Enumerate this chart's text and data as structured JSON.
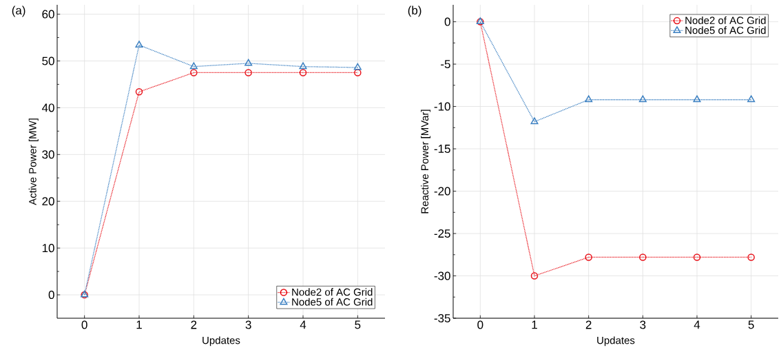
{
  "chart_data": [
    {
      "type": "line",
      "title": "(a)",
      "xlabel": "Updates",
      "ylabel": "Active Power [MW]",
      "x": [
        0,
        1,
        2,
        3,
        4,
        5
      ],
      "xlim": [
        -0.5,
        5.5
      ],
      "xticks": [
        0,
        1,
        2,
        3,
        4,
        5
      ],
      "ylim": [
        -5,
        62
      ],
      "yticks": [
        0,
        10,
        20,
        30,
        40,
        50,
        60
      ],
      "grid": true,
      "legend": "bottom right",
      "line_style": "dotted",
      "series": [
        {
          "name": "Node2 of AC Grid",
          "color": "#e8141c",
          "marker": "circle",
          "values": [
            0,
            43.4,
            47.5,
            47.5,
            47.5,
            47.5
          ]
        },
        {
          "name": "Node5 of AC Grid",
          "color": "#3a7fc1",
          "marker": "triangle",
          "values": [
            0,
            53.4,
            48.8,
            49.5,
            48.8,
            48.6
          ]
        }
      ]
    },
    {
      "type": "line",
      "title": "(b)",
      "xlabel": "Updates",
      "ylabel": "Reactive Power [MVar]",
      "x": [
        0,
        1,
        2,
        3,
        4,
        5
      ],
      "xlim": [
        -0.5,
        5.5
      ],
      "xticks": [
        0,
        1,
        2,
        3,
        4,
        5
      ],
      "ylim": [
        -35,
        2
      ],
      "yticks": [
        -35,
        -30,
        -25,
        -20,
        -15,
        -10,
        -5,
        0
      ],
      "grid": true,
      "legend": "top right",
      "line_style": "dotted",
      "series": [
        {
          "name": "Node2 of AC Grid",
          "color": "#e8141c",
          "marker": "circle",
          "values": [
            0,
            -30,
            -27.8,
            -27.8,
            -27.8,
            -27.8
          ]
        },
        {
          "name": "Node5 of AC Grid",
          "color": "#3a7fc1",
          "marker": "triangle",
          "values": [
            0,
            -11.8,
            -9.2,
            -9.2,
            -9.2,
            -9.2
          ]
        }
      ]
    }
  ]
}
